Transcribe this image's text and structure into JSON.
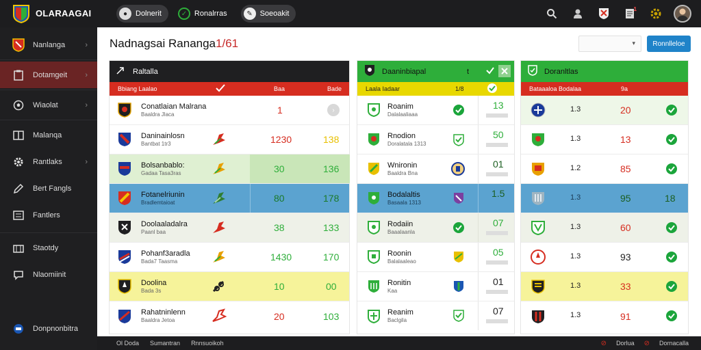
{
  "brand": {
    "name": "OLARAAGAI",
    "sub": ""
  },
  "top_tabs": [
    {
      "label": "Dolnerit"
    },
    {
      "label": "Ronalrras"
    },
    {
      "label": "Soeoakit"
    }
  ],
  "top_icons": [
    {
      "name": "search-icon"
    },
    {
      "name": "user-icon"
    },
    {
      "name": "club-badge-icon"
    },
    {
      "name": "document-icon",
      "badge": "1"
    },
    {
      "name": "settings-icon"
    }
  ],
  "sidebar": {
    "items": [
      {
        "label": "Nanlanga"
      },
      {
        "label": "Dotamgeit"
      },
      {
        "label": "Wiaolat"
      },
      {
        "label": "Malanqa"
      },
      {
        "label": "Rantlaks"
      },
      {
        "label": "Bert Fangls"
      },
      {
        "label": "Fantlers"
      },
      {
        "label": "Staotdy"
      },
      {
        "label": "Nlaomiinit"
      }
    ],
    "footer_label": "Donpnonbitra"
  },
  "main": {
    "title": "Nadnagsai Rananga",
    "title_accent": "1/61",
    "select_value": "",
    "action_button": "Ronnlleloe"
  },
  "panel1": {
    "header": "Raltalla",
    "sub": {
      "c1": "Bbiang Laalao",
      "c2": "Baa",
      "c3": "Bade"
    },
    "rows": [
      {
        "name": "Conatlaian Malrana",
        "sub": "Baaldra Jlaca",
        "n1": "1",
        "n2": ""
      },
      {
        "name": "Daninainlosn",
        "sub": "Bantbat 1tr3",
        "n1": "1230",
        "n2": "138"
      },
      {
        "name": "Bolsanbablo:",
        "sub": "Gadaa Tasa3ras",
        "n1": "30",
        "n2": "136"
      },
      {
        "name": "Fotanelriunin",
        "sub": "Bradlemtaioat",
        "n1": "80",
        "n2": "178"
      },
      {
        "name": "Doolaaladalra",
        "sub": "Paanl baa",
        "n1": "38",
        "n2": "133"
      },
      {
        "name": "Pohanf3aradla",
        "sub": "Bada7 Taasma",
        "n1": "1430",
        "n2": "170"
      },
      {
        "name": "Doolina",
        "sub": "Bada 3s",
        "n1": "10",
        "n2": "00"
      },
      {
        "name": "Rahatninlenn",
        "sub": "Baaldra Jetoa",
        "n1": "20",
        "n2": "103"
      }
    ]
  },
  "panel2": {
    "header": "Daaninbiapal",
    "header_num": "t",
    "sub": {
      "c1": "Laala Iadaar",
      "c2": "1/8"
    },
    "rows": [
      {
        "name": "Roanim",
        "sub": "Dalalaaliaaa",
        "n": "13"
      },
      {
        "name": "Rnodion",
        "sub": "Doralatala 1313",
        "n": "50"
      },
      {
        "name": "Wnironin",
        "sub": "Baaldra Bna",
        "n": "01"
      },
      {
        "name": "Bodalaltis",
        "sub": "Basaala 1313",
        "n": "1.5"
      },
      {
        "name": "Rodaiin",
        "sub": "Baaalaanla",
        "n": "07"
      },
      {
        "name": "Roonin",
        "sub": "Balalaaleao",
        "n": "05"
      },
      {
        "name": "Ronitin",
        "sub": "Kaa",
        "n": "01"
      },
      {
        "name": "Reanim",
        "sub": "Baclgila",
        "n": "07"
      }
    ]
  },
  "panel3": {
    "header": "Doranltlas",
    "sub": {
      "c1": "Bataaaloa Bodalaa",
      "c2": "9a"
    },
    "rows": [
      {
        "n1": "1.3",
        "n2": "20"
      },
      {
        "n1": "1.3",
        "n2": "13"
      },
      {
        "n1": "1.2",
        "n2": "85"
      },
      {
        "n1": "1.3",
        "n2": "95",
        "n3": "18"
      },
      {
        "n1": "1.3",
        "n2": "60"
      },
      {
        "n1": "1.3",
        "n2": "93"
      },
      {
        "n1": "1.3",
        "n2": "33"
      },
      {
        "n1": "1.3",
        "n2": "91"
      }
    ]
  },
  "footer": {
    "items": [
      "Ol Doda",
      "Sumantran",
      "Rnnsuoikoh"
    ],
    "right": [
      "Dorlua",
      "Dornacalla"
    ]
  },
  "colors": {
    "red": "#d62d20",
    "green": "#2eae3a",
    "yellow": "#e8d800",
    "dark": "#1f1f21",
    "blue": "#5ba3d0"
  }
}
